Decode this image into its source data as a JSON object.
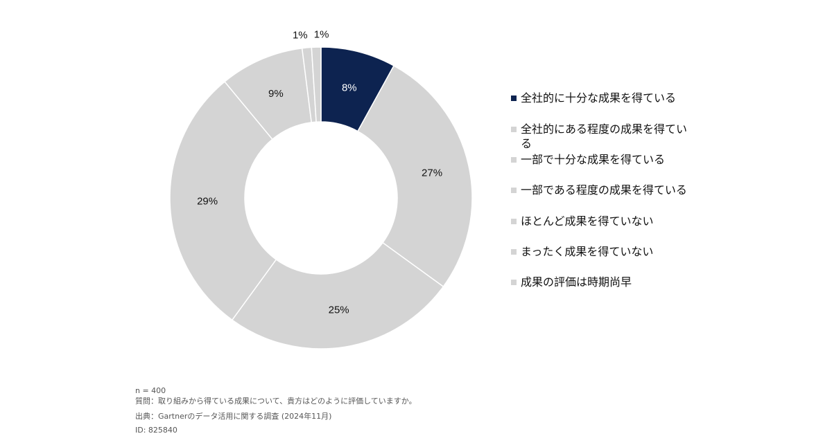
{
  "chart_data": {
    "type": "pie",
    "style": "donut",
    "categories": [
      "全社的に十分な成果を得ている",
      "全社的にある程度の成果を得ている",
      "一部で十分な成果を得ている",
      "一部である程度の成果を得ている",
      "ほとんど成果を得ていない",
      "まったく成果を得ていない",
      "成果の評価は時期尚早"
    ],
    "values": [
      8,
      27,
      25,
      29,
      9,
      1,
      1
    ],
    "value_labels": [
      "8%",
      "27%",
      "25%",
      "29%",
      "9%",
      "1%",
      "1%"
    ],
    "unit": "%",
    "colors": [
      "#0d2350",
      "#d4d4d4",
      "#d4d4d4",
      "#d4d4d4",
      "#d4d4d4",
      "#d4d4d4",
      "#d4d4d4"
    ],
    "legend_position": "right",
    "title": ""
  },
  "notes": {
    "sample_size": "n = 400",
    "question": "質問：取り組みから得ている成果について、貴方はどのように評価していますか。",
    "source": "出典：Gartnerのデータ活用に関する調査 (2024年11月)",
    "id": "ID: 825840"
  }
}
